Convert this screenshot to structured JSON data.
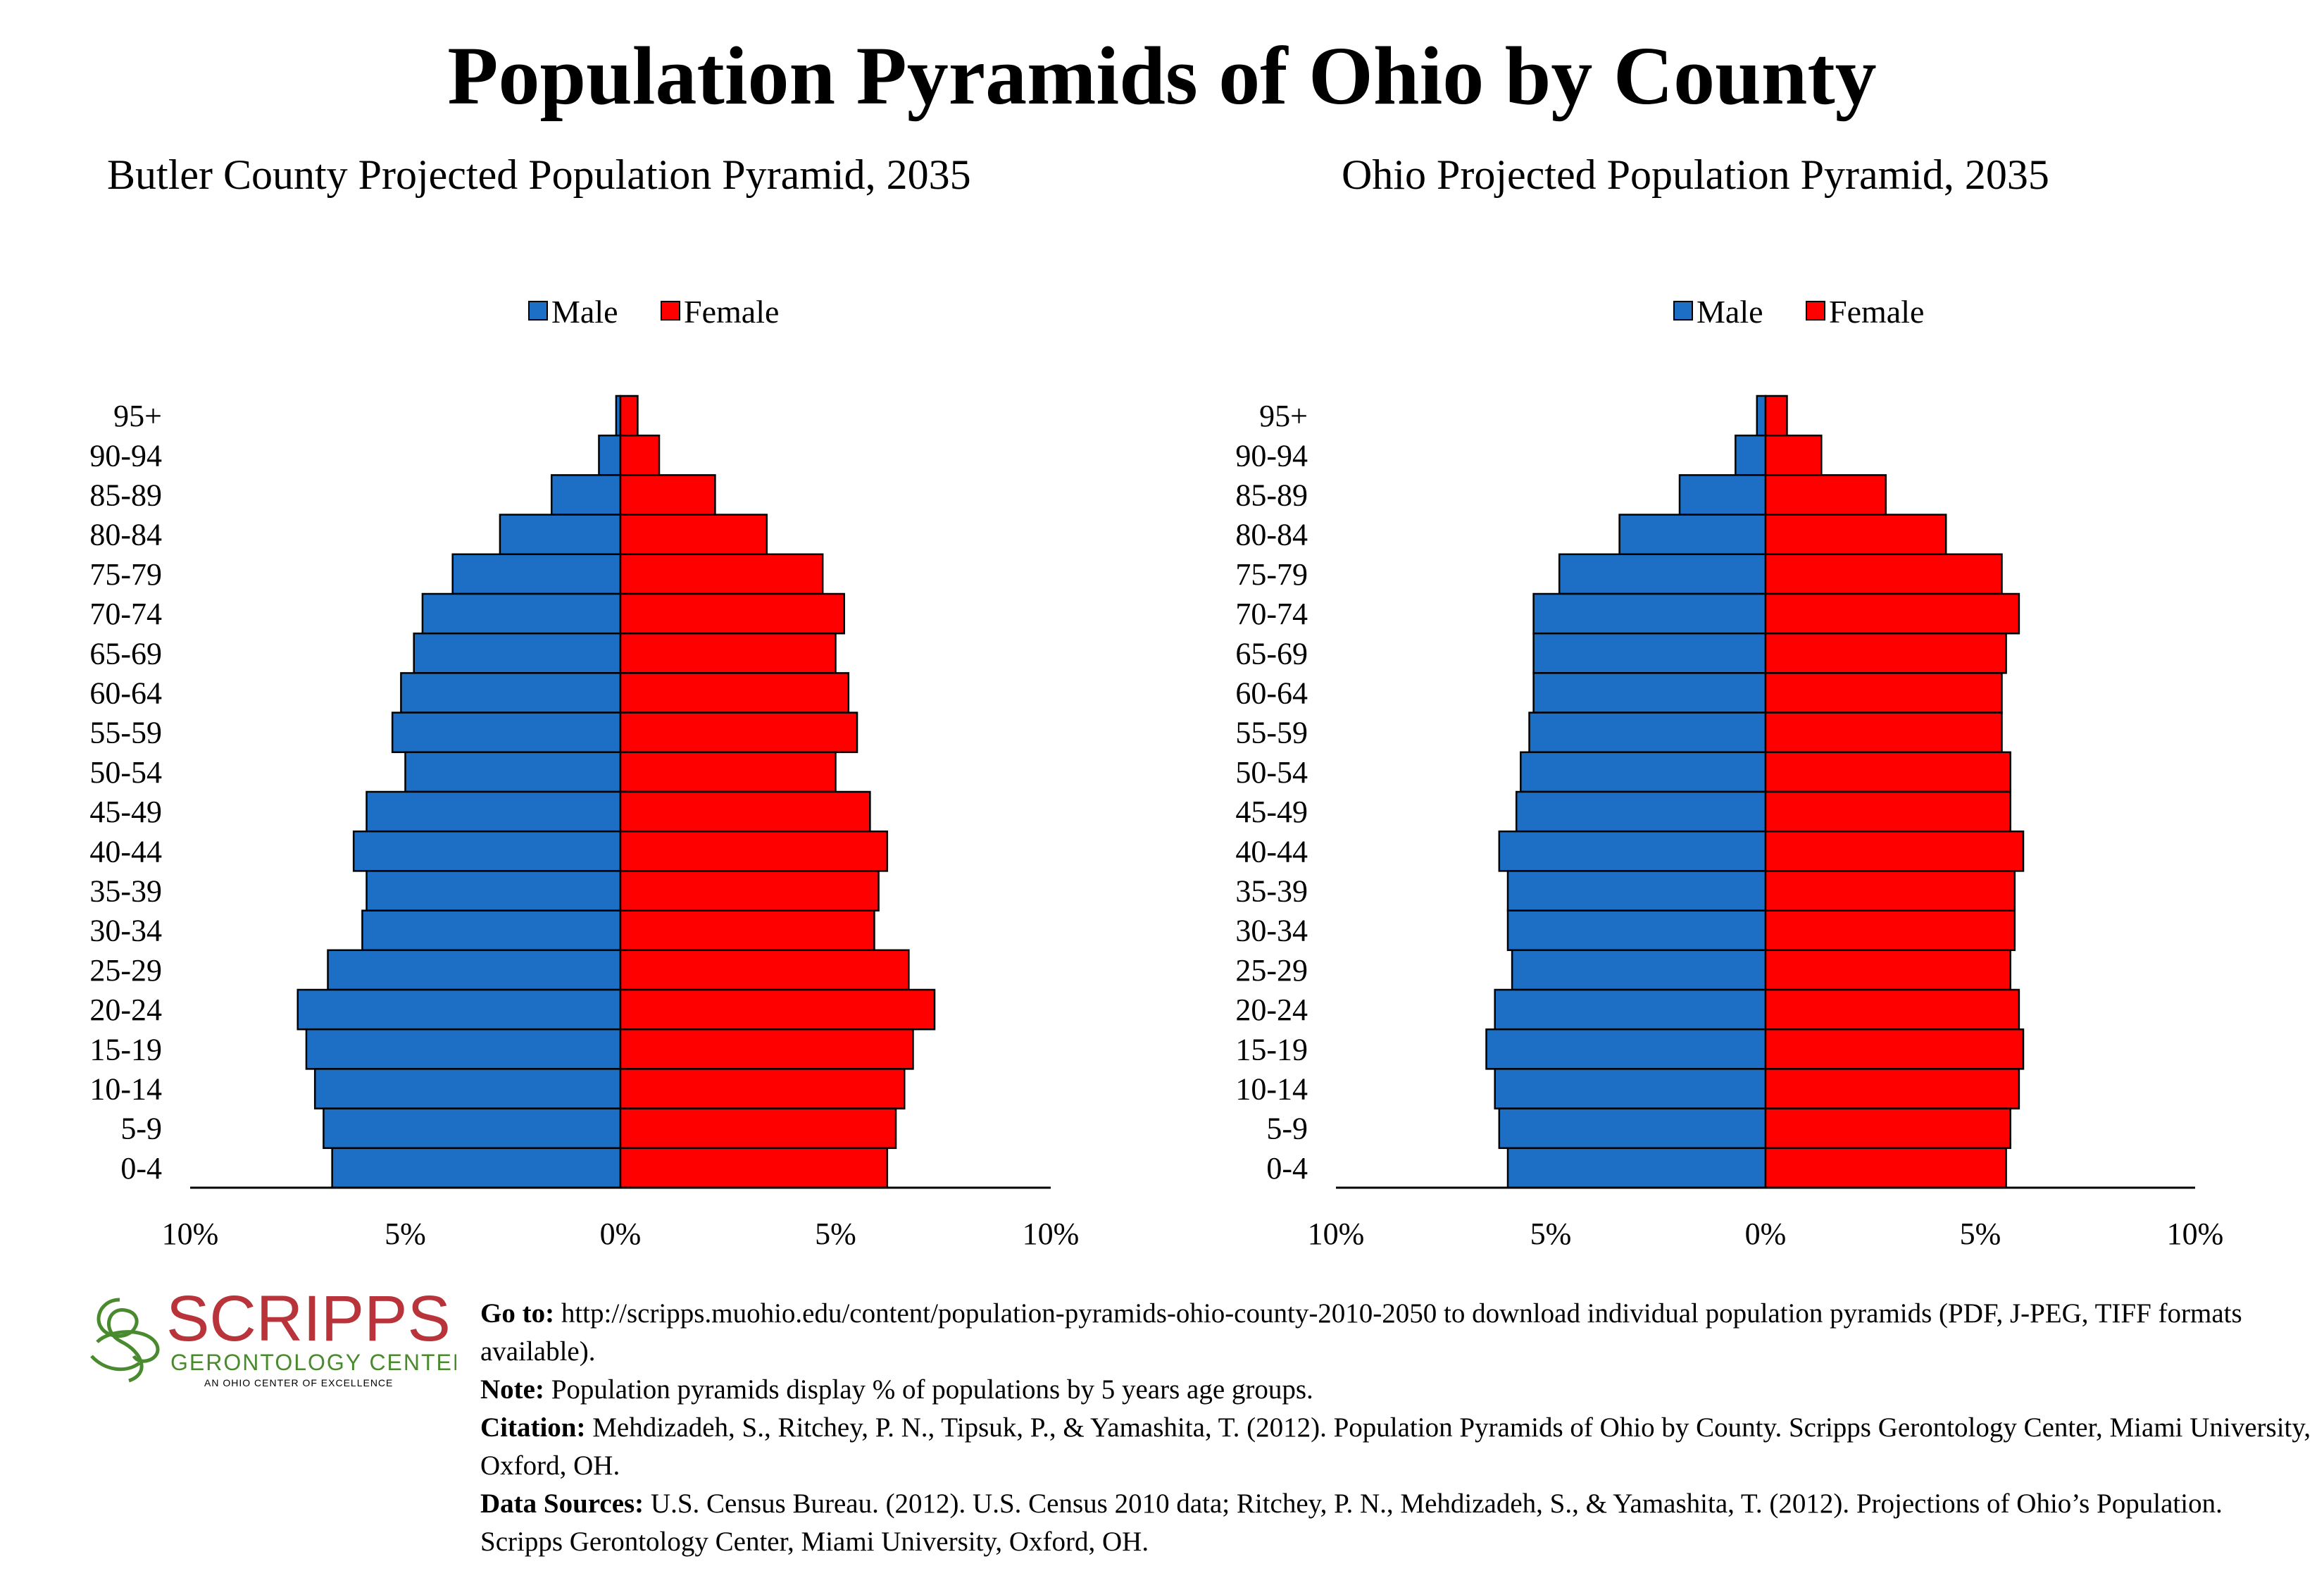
{
  "page": {
    "title": "Population Pyramids of Ohio by County"
  },
  "colors": {
    "male": "#1c6fc4",
    "female": "#ff0000",
    "logo_red": "#b8333a",
    "logo_green": "#4a8a2e"
  },
  "chart_data": [
    {
      "type": "bar",
      "orientation": "horizontal-population-pyramid",
      "title": "Butler County Projected Population Pyramid, 2035",
      "legend": {
        "position": "top-center",
        "entries": [
          "Male",
          "Female"
        ]
      },
      "categories": [
        "95+",
        "90-94",
        "85-89",
        "80-84",
        "75-79",
        "70-74",
        "65-69",
        "60-64",
        "55-59",
        "50-54",
        "45-49",
        "40-44",
        "35-39",
        "30-34",
        "25-29",
        "20-24",
        "15-19",
        "10-14",
        "5-9",
        "0-4"
      ],
      "series": [
        {
          "name": "Male",
          "values": [
            0.1,
            0.5,
            1.6,
            2.8,
            3.9,
            4.6,
            4.8,
            5.1,
            5.3,
            5.0,
            5.9,
            6.2,
            5.9,
            6.0,
            6.8,
            7.5,
            7.3,
            7.1,
            6.9,
            6.7
          ]
        },
        {
          "name": "Female",
          "values": [
            0.4,
            0.9,
            2.2,
            3.4,
            4.7,
            5.2,
            5.0,
            5.3,
            5.5,
            5.0,
            5.8,
            6.2,
            6.0,
            5.9,
            6.7,
            7.3,
            6.8,
            6.6,
            6.4,
            6.2
          ]
        }
      ],
      "xlim": [
        -10,
        10
      ],
      "xticks": [
        -10,
        -5,
        0,
        5,
        10
      ],
      "xtick_labels": [
        "10%",
        "5%",
        "0%",
        "5%",
        "10%"
      ],
      "grid": false
    },
    {
      "type": "bar",
      "orientation": "horizontal-population-pyramid",
      "title": "Ohio Projected Population Pyramid, 2035",
      "legend": {
        "position": "top-center",
        "entries": [
          "Male",
          "Female"
        ]
      },
      "categories": [
        "95+",
        "90-94",
        "85-89",
        "80-84",
        "75-79",
        "70-74",
        "65-69",
        "60-64",
        "55-59",
        "50-54",
        "45-49",
        "40-44",
        "35-39",
        "30-34",
        "25-29",
        "20-24",
        "15-19",
        "10-14",
        "5-9",
        "0-4"
      ],
      "series": [
        {
          "name": "Male",
          "values": [
            0.2,
            0.7,
            2.0,
            3.4,
            4.8,
            5.4,
            5.4,
            5.4,
            5.5,
            5.7,
            5.8,
            6.2,
            6.0,
            6.0,
            5.9,
            6.3,
            6.5,
            6.3,
            6.2,
            6.0
          ]
        },
        {
          "name": "Female",
          "values": [
            0.5,
            1.3,
            2.8,
            4.2,
            5.5,
            5.9,
            5.6,
            5.5,
            5.5,
            5.7,
            5.7,
            6.0,
            5.8,
            5.8,
            5.7,
            5.9,
            6.0,
            5.9,
            5.7,
            5.6
          ]
        }
      ],
      "xlim": [
        -10,
        10
      ],
      "xticks": [
        -10,
        -5,
        0,
        5,
        10
      ],
      "xtick_labels": [
        "10%",
        "5%",
        "0%",
        "5%",
        "10%"
      ],
      "grid": false
    }
  ],
  "logo": {
    "name": "SCRIPPS",
    "subtitle": "GERONTOLOGY CENTER",
    "tagline": "AN OHIO CENTER OF EXCELLENCE"
  },
  "notes": {
    "goto_label": "Go to:",
    "goto_text": " http://scripps.muohio.edu/content/population-pyramids-ohio-county-2010-2050 to download individual population pyramids (PDF, J-PEG, TIFF formats available).",
    "note_label": "Note:",
    "note_text": " Population pyramids display % of populations by 5 years age groups.",
    "citation_label": "Citation:",
    "citation_text": " Mehdizadeh, S., Ritchey, P. N., Tipsuk, P., & Yamashita, T. (2012). Population Pyramids of Ohio by County. Scripps Gerontology Center, Miami University, Oxford, OH.",
    "sources_label": "Data Sources:",
    "sources_text": " U.S. Census Bureau. (2012). U.S. Census 2010 data; Ritchey, P. N., Mehdizadeh, S., & Yamashita, T. (2012). Projections of Ohio’s Population. Scripps Gerontology Center, Miami University, Oxford, OH."
  }
}
